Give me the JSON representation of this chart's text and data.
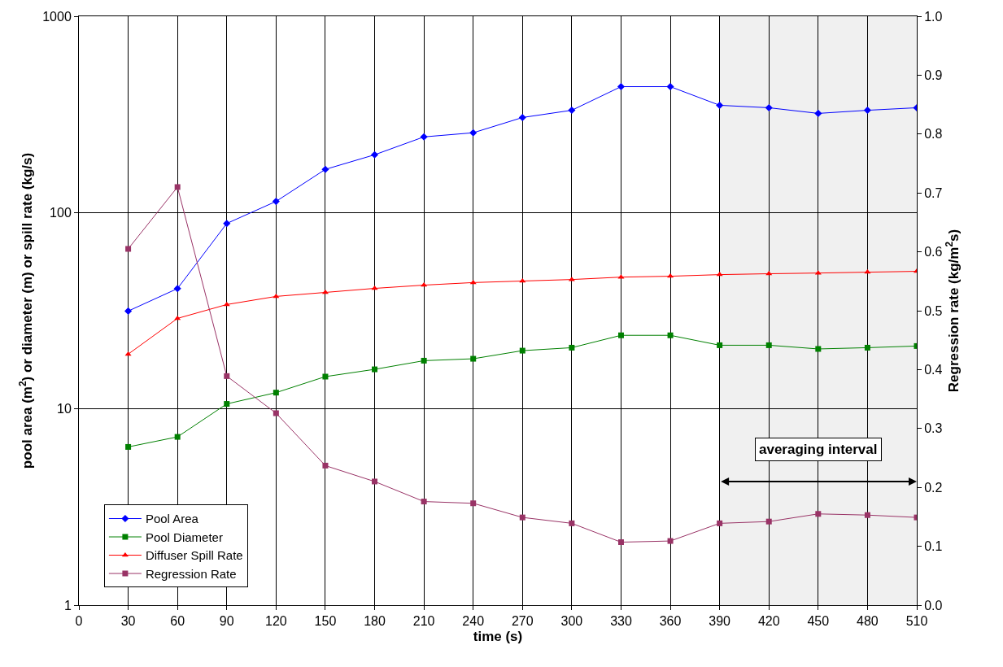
{
  "chart_data": {
    "type": "line",
    "xlabel": "time (s)",
    "ylabel": "pool area (m$^{2}$) or diameter (m) or spill rate (kg/s)",
    "y2label": "Regression rate (kg/m$^{2}$s)",
    "x": [
      30,
      60,
      90,
      120,
      150,
      180,
      210,
      240,
      270,
      300,
      330,
      360,
      390,
      420,
      450,
      480,
      510
    ],
    "series": [
      {
        "name": "Pool Area",
        "color": "#0000ff",
        "marker": "diamond",
        "values": [
          31.5,
          41,
          88,
          114,
          166,
          197,
          243,
          255,
          305,
          332,
          438,
          438,
          352,
          342,
          320,
          332,
          342
        ]
      },
      {
        "name": "Pool Diameter",
        "color": "#008000",
        "marker": "square",
        "values": [
          6.4,
          7.2,
          10.6,
          12.1,
          14.6,
          15.9,
          17.6,
          18.0,
          19.8,
          20.5,
          23.7,
          23.7,
          21.1,
          21.1,
          20.2,
          20.5,
          20.9
        ]
      },
      {
        "name": "Diffuser Spill Rate",
        "color": "#ff0000",
        "marker": "triangle",
        "values": [
          19.0,
          28.9,
          34.0,
          37.4,
          39.2,
          41.1,
          42.7,
          44.0,
          44.8,
          45.6,
          46.9,
          47.4,
          48.3,
          48.8,
          49.2,
          49.7,
          50.2
        ]
      },
      {
        "name": "Regression Rate",
        "color": "#993366",
        "marker": "square",
        "axis": "y2",
        "values": [
          0.605,
          0.71,
          0.389,
          0.326,
          0.237,
          0.21,
          0.176,
          0.173,
          0.149,
          0.139,
          0.107,
          0.109,
          0.139,
          0.142,
          0.155,
          0.153,
          0.149
        ]
      }
    ],
    "log": "y",
    "xlim": [
      0,
      510
    ],
    "xticks": [
      0,
      30,
      60,
      90,
      120,
      150,
      180,
      210,
      240,
      270,
      300,
      330,
      360,
      390,
      420,
      450,
      480,
      510
    ],
    "ylim": [
      1,
      1000
    ],
    "yticks": [
      1,
      10,
      100,
      1000
    ],
    "y2lim": [
      0,
      1
    ],
    "y2ticks": [
      {
        "value": 0,
        "label": "0.0"
      },
      {
        "value": 0.1,
        "label": "0.1"
      },
      {
        "value": 0.2,
        "label": "0.2"
      },
      {
        "value": 0.3,
        "label": "0.3"
      },
      {
        "value": 0.4,
        "label": "0.4"
      },
      {
        "value": 0.5,
        "label": "0.5"
      },
      {
        "value": 0.6,
        "label": "0.6"
      },
      {
        "value": 0.7,
        "label": "0.7"
      },
      {
        "value": 0.8,
        "label": "0.8"
      },
      {
        "value": 0.9,
        "label": "0.9"
      },
      {
        "value": 1,
        "label": "1.0"
      }
    ],
    "bands": [
      {
        "axis": "x",
        "from": 390,
        "to": 510,
        "label": "averaging interval"
      }
    ],
    "grid": true,
    "legend": "bottom left",
    "line_style": "solid"
  }
}
